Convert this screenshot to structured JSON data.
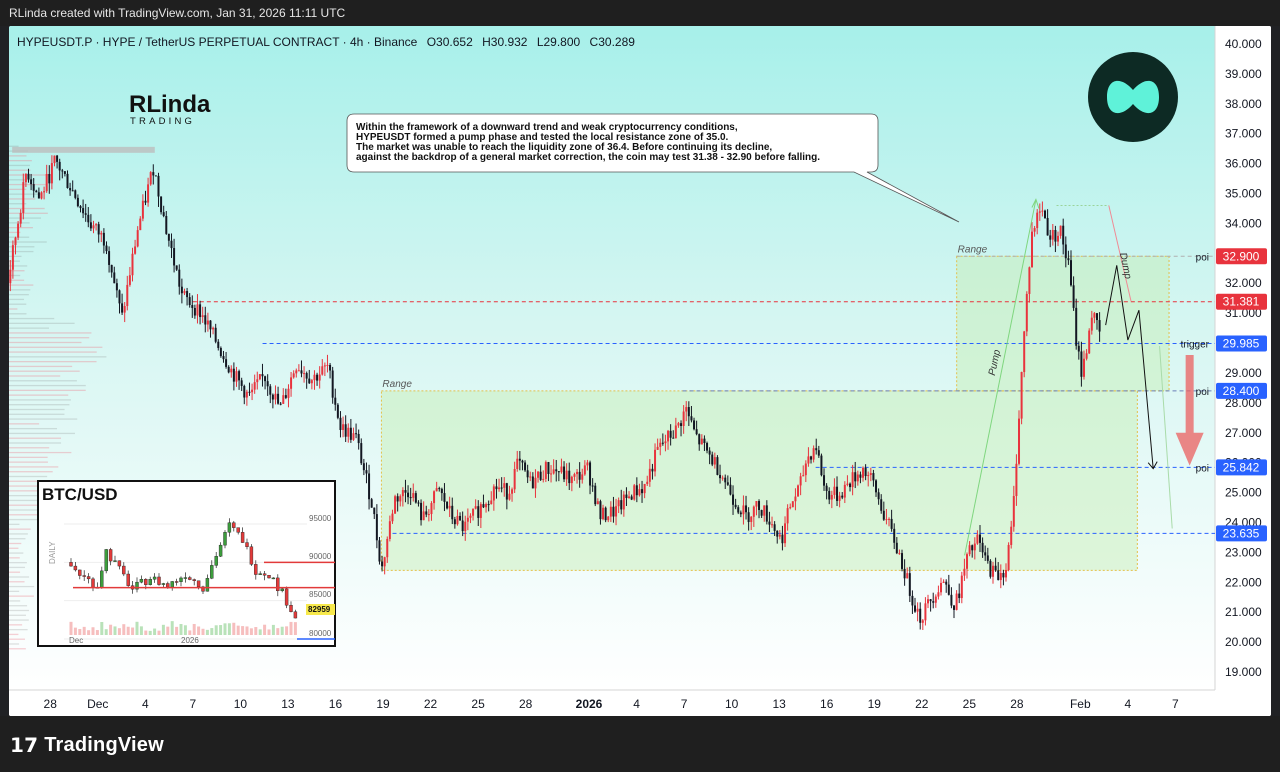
{
  "header": {
    "credit": "RLinda created with TradingView.com, Jan 31, 2026 11:11 UTC"
  },
  "chart_data": {
    "type": "candlestick",
    "legend": {
      "symbol": "HYPEUSDT.P · HYPE / TetherUS PERPETUAL CONTRACT · 4h · Binance",
      "o_label": "O",
      "o": "30.652",
      "h_label": "H",
      "h": "30.932",
      "l_label": "L",
      "l": "29.800",
      "c_label": "C",
      "c": "30.289"
    },
    "y_axis": {
      "ticks": [
        "40.000",
        "39.000",
        "38.000",
        "37.000",
        "36.000",
        "35.000",
        "34.000",
        "33.000",
        "32.000",
        "31.000",
        "30.000",
        "29.000",
        "28.000",
        "27.000",
        "26.000",
        "25.000",
        "24.000",
        "23.000",
        "22.000",
        "21.000",
        "20.000",
        "19.000"
      ],
      "range": [
        18.4,
        40.6
      ]
    },
    "x_axis": {
      "ticks": [
        {
          "label": "28",
          "day": 0
        },
        {
          "label": "Dec",
          "day": 3
        },
        {
          "label": "4",
          "day": 6
        },
        {
          "label": "7",
          "day": 9
        },
        {
          "label": "10",
          "day": 12
        },
        {
          "label": "13",
          "day": 15
        },
        {
          "label": "16",
          "day": 18
        },
        {
          "label": "19",
          "day": 21
        },
        {
          "label": "22",
          "day": 24
        },
        {
          "label": "25",
          "day": 27
        },
        {
          "label": "28",
          "day": 30
        },
        {
          "label": "2026",
          "day": 34,
          "bold": true
        },
        {
          "label": "4",
          "day": 37
        },
        {
          "label": "7",
          "day": 40
        },
        {
          "label": "10",
          "day": 43
        },
        {
          "label": "13",
          "day": 46
        },
        {
          "label": "16",
          "day": 49
        },
        {
          "label": "19",
          "day": 52
        },
        {
          "label": "22",
          "day": 55
        },
        {
          "label": "25",
          "day": 58
        },
        {
          "label": "28",
          "day": 61
        },
        {
          "label": "Feb",
          "day": 65
        },
        {
          "label": "4",
          "day": 68
        },
        {
          "label": "7",
          "day": 71
        }
      ],
      "range": [
        -2.6,
        73.5
      ]
    },
    "price_path": [
      [
        -2.6,
        32.0
      ],
      [
        -1.4,
        35.8
      ],
      [
        -0.6,
        34.8
      ],
      [
        0.4,
        36.1
      ],
      [
        1.6,
        35.0
      ],
      [
        2.6,
        34.0
      ],
      [
        3.6,
        33.4
      ],
      [
        4.6,
        30.8
      ],
      [
        5.6,
        33.8
      ],
      [
        6.6,
        35.9
      ],
      [
        7.4,
        33.8
      ],
      [
        8.4,
        31.6
      ],
      [
        9.6,
        31.0
      ],
      [
        10.6,
        30.0
      ],
      [
        11.6,
        29.0
      ],
      [
        12.6,
        28.2
      ],
      [
        13.6,
        28.9
      ],
      [
        14.6,
        27.8
      ],
      [
        15.6,
        29.3
      ],
      [
        16.6,
        28.8
      ],
      [
        17.6,
        29.2
      ],
      [
        18.4,
        27.2
      ],
      [
        19.4,
        26.8
      ],
      [
        20.4,
        24.6
      ],
      [
        21.0,
        22.4
      ],
      [
        21.8,
        24.8
      ],
      [
        22.8,
        25.1
      ],
      [
        23.6,
        24.1
      ],
      [
        24.6,
        25.1
      ],
      [
        25.4,
        24.2
      ],
      [
        26.2,
        23.8
      ],
      [
        27.2,
        24.5
      ],
      [
        28.2,
        25.2
      ],
      [
        29.0,
        25.0
      ],
      [
        29.6,
        26.0
      ],
      [
        30.4,
        25.3
      ],
      [
        31.4,
        25.8
      ],
      [
        32.2,
        25.7
      ],
      [
        33.0,
        25.4
      ],
      [
        34.0,
        25.8
      ],
      [
        34.8,
        24.2
      ],
      [
        35.8,
        24.4
      ],
      [
        36.8,
        25.0
      ],
      [
        37.6,
        25.2
      ],
      [
        38.4,
        26.4
      ],
      [
        39.0,
        26.8
      ],
      [
        39.6,
        27.1
      ],
      [
        40.2,
        27.8
      ],
      [
        40.8,
        26.9
      ],
      [
        41.6,
        26.3
      ],
      [
        42.4,
        25.7
      ],
      [
        43.2,
        24.8
      ],
      [
        44.0,
        24.2
      ],
      [
        44.8,
        24.6
      ],
      [
        45.6,
        24.0
      ],
      [
        46.2,
        23.4
      ],
      [
        46.8,
        24.6
      ],
      [
        47.4,
        25.2
      ],
      [
        47.8,
        26.1
      ],
      [
        48.4,
        26.6
      ],
      [
        49.0,
        25.0
      ],
      [
        49.8,
        24.9
      ],
      [
        50.6,
        25.4
      ],
      [
        51.4,
        25.8
      ],
      [
        52.0,
        25.3
      ],
      [
        52.6,
        24.4
      ],
      [
        53.2,
        23.6
      ],
      [
        53.8,
        22.7
      ],
      [
        54.4,
        21.6
      ],
      [
        55.0,
        20.8
      ],
      [
        55.6,
        21.4
      ],
      [
        56.4,
        22.1
      ],
      [
        57.2,
        21.2
      ],
      [
        58.0,
        22.9
      ],
      [
        58.6,
        23.4
      ],
      [
        59.2,
        22.6
      ],
      [
        59.8,
        22.2
      ],
      [
        60.4,
        22.5
      ],
      [
        60.8,
        24.0
      ],
      [
        61.2,
        27.5
      ],
      [
        61.6,
        30.8
      ],
      [
        62.0,
        33.6
      ],
      [
        62.6,
        34.6
      ],
      [
        63.2,
        33.5
      ],
      [
        63.8,
        33.8
      ],
      [
        64.4,
        32.4
      ],
      [
        64.8,
        30.2
      ],
      [
        65.2,
        28.9
      ],
      [
        65.8,
        31.0
      ],
      [
        66.3,
        30.3
      ]
    ],
    "candles_approx": 420,
    "levels": [
      {
        "label": "poi",
        "value": 32.9,
        "price_label": "32.900",
        "color": "#e8333d",
        "line": "#b0b0b0"
      },
      {
        "value": 31.381,
        "price_label": "31.381",
        "color": "#e8333d",
        "line": "#e8333d"
      },
      {
        "label": "trigger",
        "value": 29.985,
        "price_label": "29.985",
        "color": "#2962ff",
        "line": "#2962ff"
      },
      {
        "label": "poi",
        "value": 28.4,
        "price_label": "28.400",
        "color": "#2962ff",
        "line": "#6b7fb6"
      },
      {
        "label": "poi",
        "value": 25.842,
        "price_label": "25.842",
        "color": "#2962ff",
        "line": "#2962ff"
      },
      {
        "value": 23.635,
        "price_label": "23.635",
        "color": "#2962ff",
        "line": "#2962ff"
      }
    ],
    "range_boxes": [
      {
        "label": "Range",
        "x1": 20.9,
        "x2": 68.6,
        "y1": 22.4,
        "y2": 28.4
      },
      {
        "label": "Range",
        "x1": 57.2,
        "x2": 70.6,
        "y1": 28.4,
        "y2": 32.9
      }
    ],
    "pump_label": "Pump",
    "dump_label": "Dump",
    "annotation": [
      "Within the framework of a downward trend and weak cryptocurrency conditions,",
      "HYPEUSDT formed a pump phase and tested the local resistance zone of 35.0.",
      "The market was unable to reach the liquidity zone of 36.4. Before continuing its decline,",
      "against the backdrop of a general market correction, the coin may test 31.38 - 32.90 before falling."
    ],
    "brand": {
      "line1": "RLinda",
      "line2": "TRADING"
    },
    "inset": {
      "title": "BTC/USD",
      "side_label": "DAILY",
      "ticks": [
        "95000",
        "90000",
        "85000",
        "80000"
      ],
      "x_ticks": [
        "Dec",
        "2026"
      ],
      "price_label": "82959",
      "levels": [
        90000,
        86700
      ],
      "range": [
        79000,
        99000
      ]
    }
  }
}
